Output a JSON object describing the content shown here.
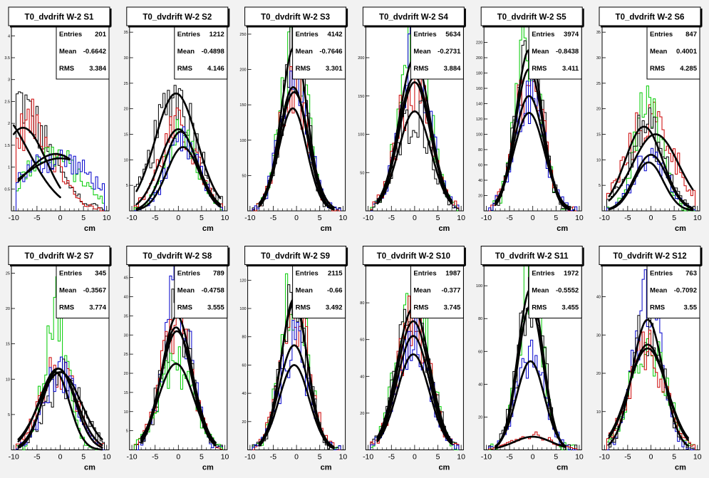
{
  "axis": {
    "xlabel": "cm",
    "xticks": [
      -10,
      -5,
      0,
      5,
      10
    ]
  },
  "stats_labels": {
    "entries": "Entries",
    "mean": "Mean",
    "rms": "RMS"
  },
  "colors": {
    "frame": "#000000",
    "background": "#f2f2f2",
    "panel": "#ffffff",
    "fit": "#000000"
  },
  "chart_data": [
    {
      "type": "bar",
      "title": "T0_dvdrift W-2 S1",
      "xlabel": "cm",
      "xlim": [
        -10.5,
        10.5
      ],
      "ylim": [
        0,
        4.2
      ],
      "yticks": [
        0.5,
        1,
        1.5,
        2,
        2.5,
        3,
        3.5,
        4
      ],
      "stats": {
        "entries": "201",
        "mean": "-0.6642",
        "rms": "3.384"
      },
      "series": [
        {
          "color": "#000000",
          "peak": 2.5,
          "mean": -10,
          "sigma": 7
        },
        {
          "color": "#cc0000",
          "peak": 2.0,
          "mean": -6,
          "sigma": 5
        },
        {
          "color": "#00cc00",
          "peak": 1.3,
          "mean": -2,
          "sigma": 6
        },
        {
          "color": "#0000cc",
          "peak": 1.2,
          "mean": -1,
          "sigma": 8
        }
      ],
      "fits": [
        {
          "peak": 2.3,
          "mean": -14,
          "sigma": 7,
          "x1": -10,
          "x2": 0
        },
        {
          "peak": 1.9,
          "mean": -8,
          "sigma": 5,
          "x1": -10,
          "x2": 0
        },
        {
          "peak": 1.3,
          "mean": -1,
          "sigma": 7,
          "x1": -9,
          "x2": 2
        },
        {
          "peak": 1.2,
          "mean": 0,
          "sigma": 9,
          "x1": -9,
          "x2": 2
        }
      ]
    },
    {
      "type": "bar",
      "title": "T0_dvdrift W-2 S2",
      "xlabel": "cm",
      "xlim": [
        -10.5,
        10.5
      ],
      "ylim": [
        0,
        36
      ],
      "yticks": [
        5,
        10,
        15,
        20,
        25,
        30,
        35
      ],
      "stats": {
        "entries": "1212",
        "mean": "-0.4898",
        "rms": "4.146"
      },
      "series": [
        {
          "color": "#000000",
          "peak": 23,
          "mean": -0.5,
          "sigma": 4.5
        },
        {
          "color": "#cc0000",
          "peak": 16,
          "mean": 0,
          "sigma": 4
        },
        {
          "color": "#00cc00",
          "peak": 15,
          "mean": 0.5,
          "sigma": 3.5
        },
        {
          "color": "#0000cc",
          "peak": 13,
          "mean": 1,
          "sigma": 3.5
        }
      ],
      "fits": [
        {
          "peak": 23,
          "mean": -0.5,
          "sigma": 4.5,
          "x1": -9,
          "x2": 9
        },
        {
          "peak": 16,
          "mean": 0,
          "sigma": 4,
          "x1": -9,
          "x2": 9
        },
        {
          "peak": 15.5,
          "mean": 0.5,
          "sigma": 3.5,
          "x1": -9,
          "x2": 9
        },
        {
          "peak": 12.5,
          "mean": 1,
          "sigma": 3.5,
          "x1": -9,
          "x2": 9
        }
      ]
    },
    {
      "type": "bar",
      "title": "T0_dvdrift W-2 S3",
      "xlabel": "cm",
      "xlim": [
        -10.5,
        10.5
      ],
      "ylim": [
        0,
        260
      ],
      "yticks": [
        50,
        100,
        150,
        200,
        250
      ],
      "stats": {
        "entries": "4142",
        "mean": "-0.7646",
        "rms": "3.301"
      },
      "series": [
        {
          "color": "#00cc00",
          "peak": 240,
          "mean": -0.5,
          "sigma": 2.8
        },
        {
          "color": "#000000",
          "peak": 230,
          "mean": -0.5,
          "sigma": 2.8
        },
        {
          "color": "#cc0000",
          "peak": 175,
          "mean": -0.7,
          "sigma": 3
        },
        {
          "color": "#0000cc",
          "peak": 165,
          "mean": -0.5,
          "sigma": 3.2
        }
      ],
      "fits": [
        {
          "peak": 232,
          "mean": -0.5,
          "sigma": 2.8,
          "x1": -8,
          "x2": 8
        },
        {
          "peak": 175,
          "mean": -0.7,
          "sigma": 3,
          "x1": -8,
          "x2": 8
        },
        {
          "peak": 168,
          "mean": -0.5,
          "sigma": 3.2,
          "x1": -8,
          "x2": 8
        },
        {
          "peak": 145,
          "mean": -0.8,
          "sigma": 3,
          "x1": -8,
          "x2": 8
        }
      ]
    },
    {
      "type": "bar",
      "title": "T0_dvdrift W-2 S4",
      "xlabel": "cm",
      "xlim": [
        -10.5,
        10.5
      ],
      "ylim": [
        0,
        240
      ],
      "yticks": [
        50,
        100,
        150,
        200
      ],
      "stats": {
        "entries": "5634",
        "mean": "-0.2731",
        "rms": "3.884"
      },
      "series": [
        {
          "color": "#00cc00",
          "peak": 225,
          "mean": 0,
          "sigma": 3.2
        },
        {
          "color": "#0000cc",
          "peak": 200,
          "mean": 0,
          "sigma": 3.3
        },
        {
          "color": "#cc0000",
          "peak": 175,
          "mean": 0,
          "sigma": 3.5
        },
        {
          "color": "#000000",
          "peak": 130,
          "mean": 0,
          "sigma": 3.5
        }
      ],
      "fits": [
        {
          "peak": 200,
          "mean": 0,
          "sigma": 3.3,
          "x1": -8,
          "x2": 8
        },
        {
          "peak": 175,
          "mean": 0,
          "sigma": 3.5,
          "x1": -8,
          "x2": 8
        },
        {
          "peak": 168,
          "mean": 0,
          "sigma": 3.4,
          "x1": -8,
          "x2": 8
        },
        {
          "peak": 130,
          "mean": 0,
          "sigma": 3.5,
          "x1": -8,
          "x2": 8
        }
      ]
    },
    {
      "type": "bar",
      "title": "T0_dvdrift W-2 S5",
      "xlabel": "cm",
      "xlim": [
        -10.5,
        10.5
      ],
      "ylim": [
        0,
        240
      ],
      "yticks": [
        20,
        40,
        60,
        80,
        100,
        120,
        140,
        160,
        180,
        200,
        220
      ],
      "stats": {
        "entries": "3974",
        "mean": "-0.8438",
        "rms": "3.411"
      },
      "series": [
        {
          "color": "#00cc00",
          "peak": 215,
          "mean": -0.8,
          "sigma": 2.8
        },
        {
          "color": "#000000",
          "peak": 210,
          "mean": -0.8,
          "sigma": 2.8
        },
        {
          "color": "#cc0000",
          "peak": 185,
          "mean": -0.8,
          "sigma": 3
        },
        {
          "color": "#0000cc",
          "peak": 150,
          "mean": -0.8,
          "sigma": 3.2
        }
      ],
      "fits": [
        {
          "peak": 210,
          "mean": -0.8,
          "sigma": 2.8,
          "x1": -8,
          "x2": 8
        },
        {
          "peak": 185,
          "mean": -0.8,
          "sigma": 3,
          "x1": -8,
          "x2": 8
        },
        {
          "peak": 150,
          "mean": -0.8,
          "sigma": 3.2,
          "x1": -8,
          "x2": 8
        },
        {
          "peak": 128,
          "mean": -0.8,
          "sigma": 3.3,
          "x1": -8,
          "x2": 8
        }
      ]
    },
    {
      "type": "bar",
      "title": "T0_dvdrift W-2 S6",
      "xlabel": "cm",
      "xlim": [
        -10.5,
        10.5
      ],
      "ylim": [
        0,
        36
      ],
      "yticks": [
        5,
        10,
        15,
        20,
        25,
        30,
        35
      ],
      "stats": {
        "entries": "847",
        "mean": "0.4001",
        "rms": "4.285"
      },
      "series": [
        {
          "color": "#cc0000",
          "peak": 18,
          "mean": 0,
          "sigma": 5
        },
        {
          "color": "#00cc00",
          "peak": 22,
          "mean": -0.5,
          "sigma": 2.8
        },
        {
          "color": "#000000",
          "peak": 16,
          "mean": -1,
          "sigma": 4
        },
        {
          "color": "#0000cc",
          "peak": 11,
          "mean": 0,
          "sigma": 3.5
        }
      ],
      "fits": [
        {
          "peak": 16.5,
          "mean": -1.5,
          "sigma": 4,
          "x1": -9,
          "x2": 9
        },
        {
          "peak": 15,
          "mean": 1,
          "sigma": 5,
          "x1": -9,
          "x2": 9
        },
        {
          "peak": 11,
          "mean": 0,
          "sigma": 3.5,
          "x1": -9,
          "x2": 9
        },
        {
          "peak": 9.5,
          "mean": -0.5,
          "sigma": 3.2,
          "x1": -9,
          "x2": 9
        }
      ]
    },
    {
      "type": "bar",
      "title": "T0_dvdrift W-2 S7",
      "xlabel": "cm",
      "xlim": [
        -10.5,
        10.5
      ],
      "ylim": [
        0,
        26
      ],
      "yticks": [
        5,
        10,
        15,
        20,
        25
      ],
      "stats": {
        "entries": "345",
        "mean": "-0.3567",
        "rms": "3.774"
      },
      "series": [
        {
          "color": "#00cc00",
          "peak": 20,
          "mean": -1,
          "sigma": 2.5
        },
        {
          "color": "#cc0000",
          "peak": 11,
          "mean": -0.5,
          "sigma": 4
        },
        {
          "color": "#000000",
          "peak": 10,
          "mean": 1,
          "sigma": 4
        },
        {
          "color": "#0000cc",
          "peak": 11,
          "mean": 0,
          "sigma": 3.5
        }
      ],
      "fits": [
        {
          "peak": 11.5,
          "mean": -0.5,
          "sigma": 4,
          "x1": -9,
          "x2": 9
        },
        {
          "peak": 11,
          "mean": 0,
          "sigma": 4.5,
          "x1": -9,
          "x2": 9
        },
        {
          "peak": 11.5,
          "mean": -0.3,
          "sigma": 3.5,
          "x1": -9,
          "x2": 9
        },
        {
          "peak": 11,
          "mean": -1,
          "sigma": 3,
          "x1": -9,
          "x2": 9
        }
      ]
    },
    {
      "type": "bar",
      "title": "T0_dvdrift W-2 S8",
      "xlabel": "cm",
      "xlim": [
        -10.5,
        10.5
      ],
      "ylim": [
        0,
        48
      ],
      "yticks": [
        5,
        10,
        15,
        20,
        25,
        30,
        35,
        40,
        45
      ],
      "stats": {
        "entries": "789",
        "mean": "-0.4758",
        "rms": "3.555"
      },
      "series": [
        {
          "color": "#0000cc",
          "peak": 40,
          "mean": -0.3,
          "sigma": 3
        },
        {
          "color": "#000000",
          "peak": 35,
          "mean": -0.3,
          "sigma": 3.2
        },
        {
          "color": "#cc0000",
          "peak": 30,
          "mean": -0.5,
          "sigma": 3.5
        },
        {
          "color": "#00cc00",
          "peak": 22,
          "mean": -0.5,
          "sigma": 3.8
        }
      ],
      "fits": [
        {
          "peak": 35,
          "mean": -0.3,
          "sigma": 3.2,
          "x1": -8,
          "x2": 8
        },
        {
          "peak": 32,
          "mean": -0.5,
          "sigma": 3.3,
          "x1": -8,
          "x2": 8
        },
        {
          "peak": 31,
          "mean": -0.3,
          "sigma": 3.5,
          "x1": -8,
          "x2": 8
        },
        {
          "peak": 22.5,
          "mean": -0.5,
          "sigma": 3.8,
          "x1": -8,
          "x2": 8
        }
      ]
    },
    {
      "type": "bar",
      "title": "T0_dvdrift W-2 S9",
      "xlabel": "cm",
      "xlim": [
        -10.5,
        10.5
      ],
      "ylim": [
        0,
        130
      ],
      "yticks": [
        20,
        40,
        60,
        80,
        100,
        120
      ],
      "stats": {
        "entries": "2115",
        "mean": "-0.66",
        "rms": "3.492"
      },
      "series": [
        {
          "color": "#00cc00",
          "peak": 115,
          "mean": -0.5,
          "sigma": 2.8
        },
        {
          "color": "#cc0000",
          "peak": 105,
          "mean": -0.5,
          "sigma": 3
        },
        {
          "color": "#000000",
          "peak": 105,
          "mean": -0.5,
          "sigma": 2.8
        },
        {
          "color": "#0000cc",
          "peak": 75,
          "mean": -0.5,
          "sigma": 3.2
        }
      ],
      "fits": [
        {
          "peak": 107,
          "mean": -0.5,
          "sigma": 2.8,
          "x1": -8,
          "x2": 8
        },
        {
          "peak": 104,
          "mean": -0.5,
          "sigma": 2.9,
          "x1": -8,
          "x2": 8
        },
        {
          "peak": 74,
          "mean": -0.5,
          "sigma": 3.2,
          "x1": -8,
          "x2": 8
        },
        {
          "peak": 60,
          "mean": -0.5,
          "sigma": 3.2,
          "x1": -8,
          "x2": 8
        }
      ]
    },
    {
      "type": "bar",
      "title": "T0_dvdrift W-2 S10",
      "xlabel": "cm",
      "xlim": [
        -10.5,
        10.5
      ],
      "ylim": [
        0,
        100
      ],
      "yticks": [
        20,
        40,
        60,
        80
      ],
      "stats": {
        "entries": "1987",
        "mean": "-0.377",
        "rms": "3.745"
      },
      "series": [
        {
          "color": "#00cc00",
          "peak": 90,
          "mean": -0.3,
          "sigma": 3.3
        },
        {
          "color": "#000000",
          "peak": 75,
          "mean": -0.3,
          "sigma": 3.5
        },
        {
          "color": "#cc0000",
          "peak": 70,
          "mean": -0.3,
          "sigma": 3.5
        },
        {
          "color": "#0000cc",
          "peak": 62,
          "mean": -0.3,
          "sigma": 3.5
        }
      ],
      "fits": [
        {
          "peak": 77,
          "mean": -0.3,
          "sigma": 3.5,
          "x1": -8,
          "x2": 8
        },
        {
          "peak": 70,
          "mean": -0.3,
          "sigma": 3.5,
          "x1": -8,
          "x2": 8
        },
        {
          "peak": 62,
          "mean": -0.3,
          "sigma": 3.5,
          "x1": -8,
          "x2": 8
        },
        {
          "peak": 52,
          "mean": -0.3,
          "sigma": 3.5,
          "x1": -8,
          "x2": 8
        }
      ]
    },
    {
      "type": "bar",
      "title": "T0_dvdrift W-2 S11",
      "xlabel": "cm",
      "xlim": [
        -10.5,
        10.5
      ],
      "ylim": [
        0,
        112
      ],
      "yticks": [
        20,
        40,
        60,
        80,
        100
      ],
      "stats": {
        "entries": "1972",
        "mean": "-0.5552",
        "rms": "3.455"
      },
      "series": [
        {
          "color": "#00cc00",
          "peak": 110,
          "mean": -0.5,
          "sigma": 2.5
        },
        {
          "color": "#000000",
          "peak": 98,
          "mean": -0.5,
          "sigma": 2.7
        },
        {
          "color": "#0000cc",
          "peak": 55,
          "mean": -0.5,
          "sigma": 3
        },
        {
          "color": "#cc0000",
          "peak": 9,
          "mean": 0,
          "sigma": 4
        }
      ],
      "fits": [
        {
          "peak": 98,
          "mean": -0.5,
          "sigma": 2.7,
          "x1": -8,
          "x2": 7
        },
        {
          "peak": 88,
          "mean": -0.5,
          "sigma": 2.7,
          "x1": -8,
          "x2": 7
        },
        {
          "peak": 54,
          "mean": -0.5,
          "sigma": 3,
          "x1": -8,
          "x2": 7
        },
        {
          "peak": 8,
          "mean": 0,
          "sigma": 4,
          "x1": -8,
          "x2": 7
        }
      ]
    },
    {
      "type": "bar",
      "title": "T0_dvdrift W-2 S12",
      "xlabel": "cm",
      "xlim": [
        -10.5,
        10.5
      ],
      "ylim": [
        0,
        48
      ],
      "yticks": [
        10,
        20,
        30,
        40
      ],
      "stats": {
        "entries": "763",
        "mean": "-0.7092",
        "rms": "3.55"
      },
      "series": [
        {
          "color": "#0000cc",
          "peak": 40,
          "mean": -0.7,
          "sigma": 3
        },
        {
          "color": "#000000",
          "peak": 34,
          "mean": -0.7,
          "sigma": 3.2
        },
        {
          "color": "#00cc00",
          "peak": 28,
          "mean": -0.7,
          "sigma": 3.8
        },
        {
          "color": "#cc0000",
          "peak": 27,
          "mean": -0.7,
          "sigma": 4
        }
      ],
      "fits": [
        {
          "peak": 34,
          "mean": -0.7,
          "sigma": 3.3,
          "x1": -9,
          "x2": 8
        },
        {
          "peak": 27.5,
          "mean": -0.7,
          "sigma": 4,
          "x1": -9,
          "x2": 8
        },
        {
          "peak": 26.5,
          "mean": -0.7,
          "sigma": 4.2,
          "x1": -9,
          "x2": 8
        }
      ]
    }
  ]
}
